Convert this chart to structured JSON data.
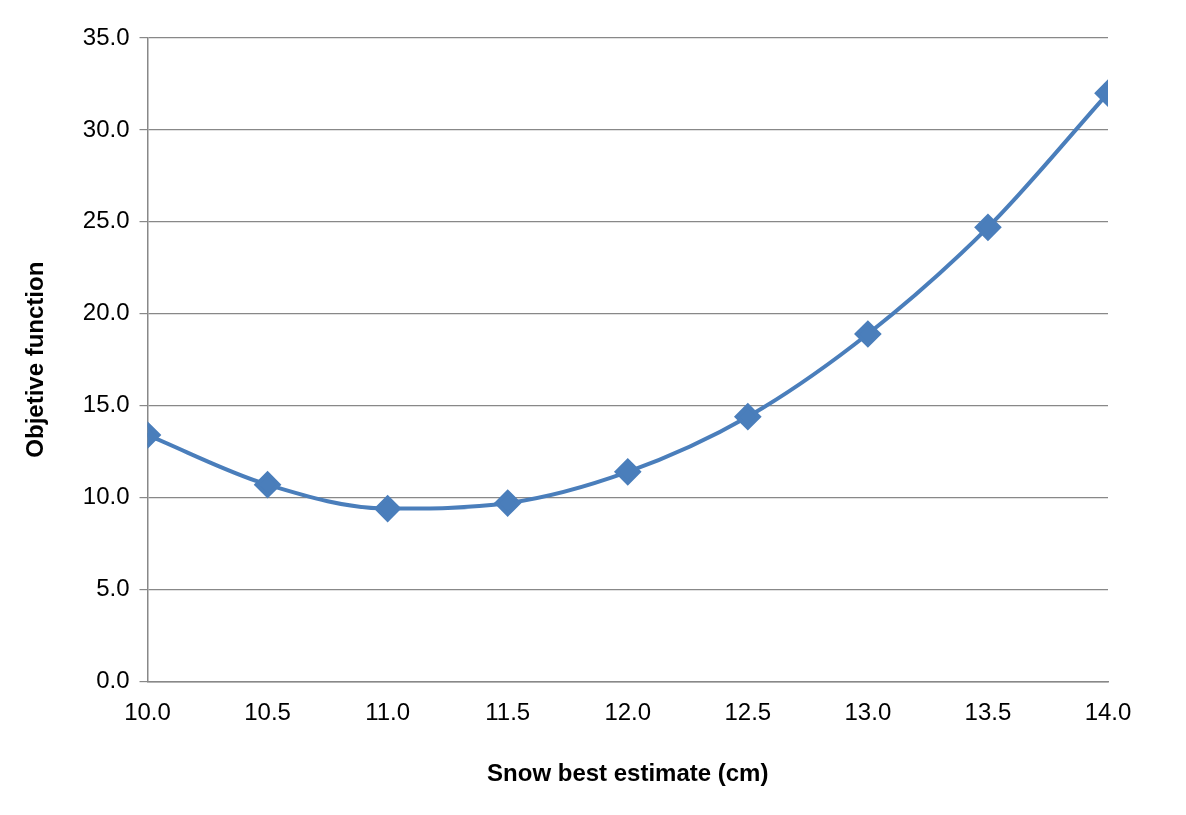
{
  "chart_data": {
    "type": "line",
    "xlabel": "Snow best estimate (cm)",
    "ylabel": "Objetive function",
    "x": [
      10.0,
      10.5,
      11.0,
      11.5,
      12.0,
      12.5,
      13.0,
      13.5,
      14.0
    ],
    "series": [
      {
        "color": "#4a7ebb",
        "values": [
          13.4,
          10.7,
          9.4,
          9.7,
          11.4,
          14.4,
          18.9,
          24.7,
          32.0
        ]
      }
    ],
    "xlim": [
      10,
      14
    ],
    "xticks": [
      {
        "value": 10,
        "label": "10.0"
      },
      {
        "value": 10.5,
        "label": "10.5"
      },
      {
        "value": 11,
        "label": "11.0"
      },
      {
        "value": 11.5,
        "label": "11.5"
      },
      {
        "value": 12,
        "label": "12.0"
      },
      {
        "value": 12.5,
        "label": "12.5"
      },
      {
        "value": 13,
        "label": "13.0"
      },
      {
        "value": 13.5,
        "label": "13.5"
      },
      {
        "value": 14,
        "label": "14.0"
      }
    ],
    "ylim": [
      0,
      35
    ],
    "yticks": [
      {
        "value": 0,
        "label": "0.0"
      },
      {
        "value": 5,
        "label": "5.0"
      },
      {
        "value": 10,
        "label": "10.0"
      },
      {
        "value": 15,
        "label": "15.0"
      },
      {
        "value": 20,
        "label": "20.0"
      },
      {
        "value": 25,
        "label": "25.0"
      },
      {
        "value": 30,
        "label": "30.0"
      },
      {
        "value": 35,
        "label": "35.0"
      }
    ],
    "grid": "y",
    "marker": "diamond",
    "line_style": "solid",
    "legend": false
  }
}
